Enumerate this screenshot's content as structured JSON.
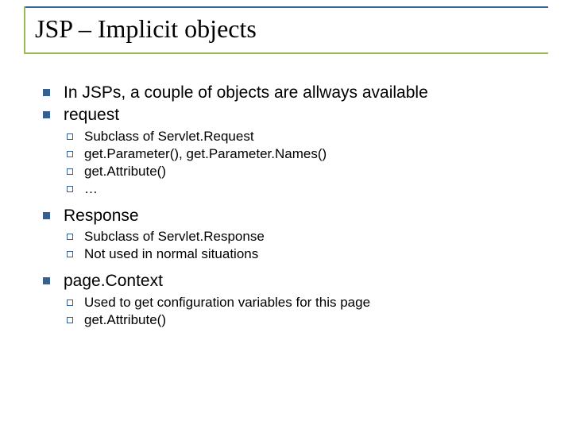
{
  "colors": {
    "accent_blue": "#376092",
    "accent_green": "#9bbb59",
    "text": "#000000",
    "background": "#ffffff"
  },
  "title": "JSP – Implicit objects",
  "bullets": [
    {
      "text": "In JSPs, a couple of objects are allways available",
      "children": []
    },
    {
      "text": "request",
      "children": [
        "Subclass of Servlet.Request",
        "get.Parameter(), get.Parameter.Names()",
        "get.Attribute()",
        "…"
      ]
    },
    {
      "text": "Response",
      "children": [
        "Subclass of Servlet.Response",
        "Not used in normal situations"
      ]
    },
    {
      "text": "page.Context",
      "children": [
        "Used to get configuration variables for this page",
        "get.Attribute()"
      ]
    }
  ]
}
